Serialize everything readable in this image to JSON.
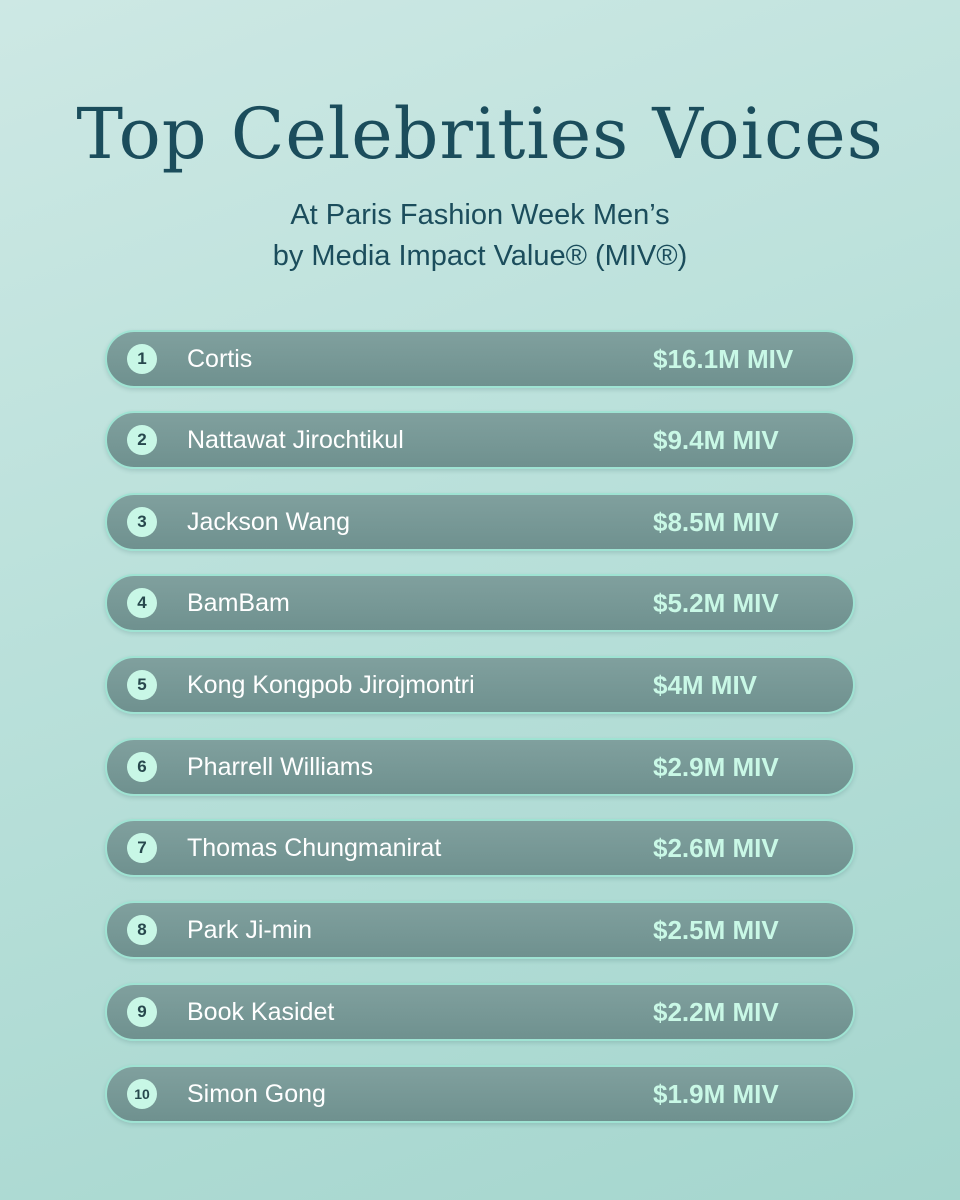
{
  "header": {
    "title": "Top Celebrities Voices",
    "subtitle_line1": "At Paris Fashion Week Men’s",
    "subtitle_line2": "by Media Impact Value® (MIV®)"
  },
  "ranking": [
    {
      "rank": "1",
      "name": "Cortis",
      "value": "$16.1M MIV"
    },
    {
      "rank": "2",
      "name": "Nattawat Jirochtikul",
      "value": "$9.4M MIV"
    },
    {
      "rank": "3",
      "name": "Jackson Wang",
      "value": "$8.5M MIV"
    },
    {
      "rank": "4",
      "name": "BamBam",
      "value": "$5.2M MIV"
    },
    {
      "rank": "5",
      "name": "Kong Kongpob Jirojmontri",
      "value": "$4M MIV"
    },
    {
      "rank": "6",
      "name": "Pharrell Williams",
      "value": "$2.9M MIV"
    },
    {
      "rank": "7",
      "name": "Thomas Chungmanirat",
      "value": "$2.6M MIV"
    },
    {
      "rank": "8",
      "name": "Park Ji-min",
      "value": "$2.5M MIV"
    },
    {
      "rank": "9",
      "name": "Book Kasidet",
      "value": "$2.2M MIV"
    },
    {
      "rank": "10",
      "name": "Simon Gong",
      "value": "$1.9M MIV"
    }
  ],
  "colors": {
    "title": "#1b4d5c",
    "row_background": "#789997",
    "row_border": "#9fe3d3",
    "rank_badge": "#c8f7e6",
    "value_text": "#c9f8e6"
  }
}
